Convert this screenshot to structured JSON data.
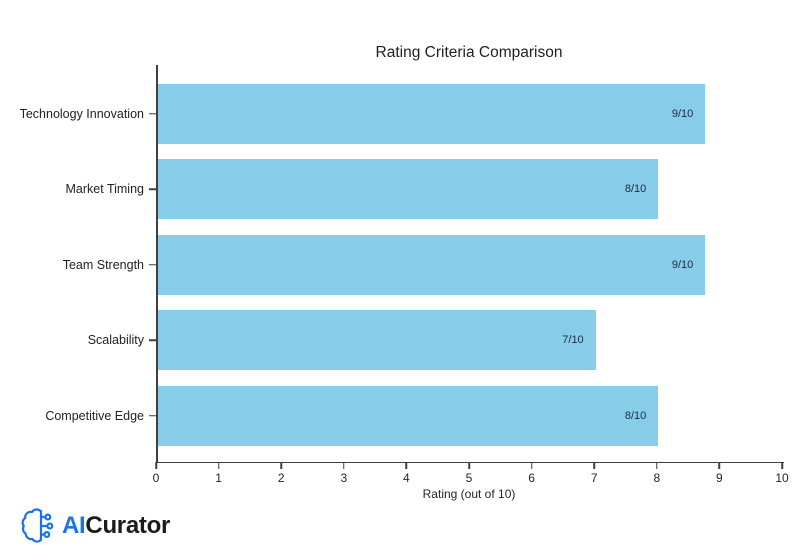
{
  "chart_data": {
    "type": "bar",
    "orientation": "horizontal",
    "title": "Rating Criteria Comparison",
    "categories": [
      "Technology Innovation",
      "Market Timing",
      "Team Strength",
      "Scalability",
      "Competitive Edge"
    ],
    "values": [
      8.75,
      8,
      8.75,
      7,
      8
    ],
    "bar_labels": [
      "9/10",
      "8/10",
      "9/10",
      "7/10",
      "8/10"
    ],
    "xlabel": "Rating (out of 10)",
    "ylabel": "",
    "xlim": [
      0,
      10
    ],
    "x_ticks": [
      0,
      1,
      2,
      3,
      4,
      5,
      6,
      7,
      8,
      9,
      10
    ],
    "bar_color": "#87CDEA",
    "grid": false,
    "legend": "none",
    "background": "#FFFFFF"
  },
  "branding": {
    "logo_icon": "brain-circuit-icon",
    "logo_text_ai": "AI",
    "logo_text_curator": "Curator",
    "ai_color": "#1A73E8",
    "curator_color": "#1B1B1B"
  }
}
